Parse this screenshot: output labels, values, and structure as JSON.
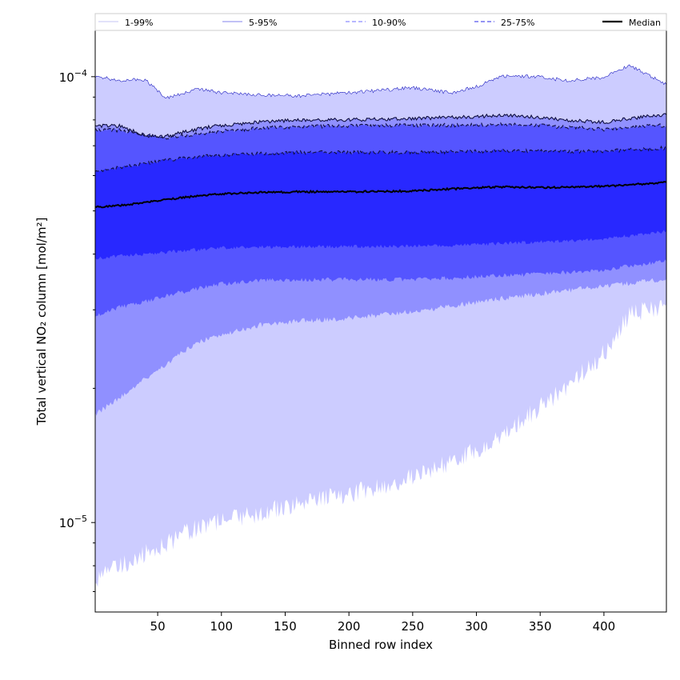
{
  "chart_data": {
    "type": "area",
    "title": "",
    "xlabel": "Binned row index",
    "ylabel": "Total vertical NO₂ column [mol/m²]",
    "xlim": [
      1,
      449
    ],
    "ylim": [
      6.3e-06,
      0.000127
    ],
    "yscale": "log",
    "x_ticks": [
      50,
      100,
      150,
      200,
      250,
      300,
      350,
      400
    ],
    "y_tick_labels": [
      {
        "value": 1e-05,
        "base": "10",
        "exponent": "−5"
      },
      {
        "value": 0.0001,
        "base": "10",
        "exponent": "−4"
      }
    ],
    "grid": false,
    "legend_position": "top, outside plot",
    "legend": [
      {
        "name": "1-99%",
        "style": "solid",
        "color": "#d0d0f8"
      },
      {
        "name": "5-95%",
        "style": "solid",
        "color": "#9c9cf0"
      },
      {
        "name": "10-90%",
        "style": "dashed",
        "color": "#8c8cff"
      },
      {
        "name": "25-75%",
        "style": "dashed",
        "color": "#5555ee"
      },
      {
        "name": "Median",
        "style": "solid",
        "color": "#000000"
      }
    ],
    "x": [
      1,
      20,
      40,
      57,
      80,
      100,
      130,
      160,
      200,
      250,
      280,
      300,
      320,
      350,
      370,
      400,
      420,
      449
    ],
    "bands": [
      {
        "name": "1-99%",
        "color": "#ccccff",
        "low": [
          7.5e-06,
          8e-06,
          8.5e-06,
          9e-06,
          9.7e-06,
          1.01e-05,
          1.05e-05,
          1.1e-05,
          1.16e-05,
          1.26e-05,
          1.36e-05,
          1.45e-05,
          1.57e-05,
          1.81e-05,
          2e-05,
          2.4e-05,
          2.91e-05,
          3.09e-05
        ],
        "high": [
          0.0001,
          9.82e-05,
          9.85e-05,
          8.95e-05,
          9.38e-05,
          9.2e-05,
          9.1e-05,
          9.05e-05,
          9.2e-05,
          9.45e-05,
          9.2e-05,
          9.5e-05,
          0.0001005,
          0.0001,
          9.8e-05,
          9.95e-05,
          0.000106,
          9.6e-05
        ]
      },
      {
        "name": "5-95%",
        "color": "#9090ff",
        "low": [
          1.75e-05,
          1.9e-05,
          2.1e-05,
          2.27e-05,
          2.53e-05,
          2.64e-05,
          2.77e-05,
          2.83e-05,
          2.87e-05,
          2.98e-05,
          3.06e-05,
          3.12e-05,
          3.18e-05,
          3.26e-05,
          3.31e-05,
          3.39e-05,
          3.44e-05,
          3.52e-05
        ],
        "high": [
          7.75e-05,
          7.75e-05,
          7.38e-05,
          7.35e-05,
          7.62e-05,
          7.78e-05,
          7.9e-05,
          8e-05,
          8e-05,
          8.06e-05,
          8.1e-05,
          8.12e-05,
          8.22e-05,
          8.1e-05,
          8e-05,
          7.9e-05,
          8.06e-05,
          8.22e-05
        ]
      },
      {
        "name": "10-90%",
        "color": "#5555ff",
        "low": [
          2.9e-05,
          3.04e-05,
          3.13e-05,
          3.23e-05,
          3.34e-05,
          3.43e-05,
          3.49e-05,
          3.5e-05,
          3.51e-05,
          3.51e-05,
          3.53e-05,
          3.56e-05,
          3.58e-05,
          3.61e-05,
          3.64e-05,
          3.68e-05,
          3.76e-05,
          3.85e-05
        ],
        "high": [
          7.6e-05,
          7.58e-05,
          7.4e-05,
          7.3e-05,
          7.42e-05,
          7.55e-05,
          7.66e-05,
          7.72e-05,
          7.76e-05,
          7.78e-05,
          7.78e-05,
          7.8e-05,
          7.82e-05,
          7.78e-05,
          7.7e-05,
          7.62e-05,
          7.7e-05,
          7.78e-05
        ]
      },
      {
        "name": "25-75%",
        "color": "#2828ff",
        "low": [
          3.9e-05,
          3.96e-05,
          4e-05,
          4.04e-05,
          4.09e-05,
          4.13e-05,
          4.15e-05,
          4.15e-05,
          4.16e-05,
          4.17e-05,
          4.19e-05,
          4.2e-05,
          4.23e-05,
          4.26e-05,
          4.28e-05,
          4.32e-05,
          4.4e-05,
          4.5e-05
        ],
        "high": [
          6.15e-05,
          6.25e-05,
          6.38e-05,
          6.5e-05,
          6.6e-05,
          6.67e-05,
          6.72e-05,
          6.76e-05,
          6.76e-05,
          6.77e-05,
          6.78e-05,
          6.8e-05,
          6.82e-05,
          6.81e-05,
          6.8e-05,
          6.8e-05,
          6.86e-05,
          6.92e-05
        ]
      }
    ],
    "median": [
      5.1e-05,
      5.14e-05,
      5.22e-05,
      5.3e-05,
      5.4e-05,
      5.46e-05,
      5.5e-05,
      5.52e-05,
      5.52e-05,
      5.54e-05,
      5.6e-05,
      5.63e-05,
      5.66e-05,
      5.64e-05,
      5.65e-05,
      5.68e-05,
      5.72e-05,
      5.8e-05
    ]
  }
}
